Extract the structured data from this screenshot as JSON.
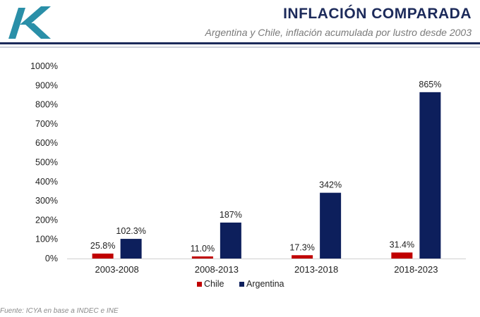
{
  "header": {
    "title": "INFLACIÓN COMPARADA",
    "subtitle": "Argentina y Chile, inflación acumulada por lustro desde 2003"
  },
  "footer": {
    "source": "Fuente: ICYA en base a INDEC e INE"
  },
  "colors": {
    "chile": "#c00000",
    "argentina": "#0d1f5c",
    "accent": "#1c2a5a",
    "logo": "#2a8fa8"
  },
  "chart_data": {
    "type": "bar",
    "title": "INFLACIÓN COMPARADA",
    "subtitle": "Argentina y Chile, inflación acumulada por lustro desde 2003",
    "xlabel": "",
    "ylabel": "",
    "categories": [
      "2003-2008",
      "2008-2013",
      "2013-2018",
      "2018-2023"
    ],
    "series": [
      {
        "name": "Chile",
        "values": [
          25.8,
          11.0,
          17.3,
          31.4
        ],
        "labels": [
          "25.8%",
          "11.0%",
          "17.3%",
          "31.4%"
        ]
      },
      {
        "name": "Argentina",
        "values": [
          102.3,
          187,
          342,
          865
        ],
        "labels": [
          "102.3%",
          "187%",
          "342%",
          "865%"
        ]
      }
    ],
    "ylim": [
      0,
      1000
    ],
    "yticks": [
      0,
      100,
      200,
      300,
      400,
      500,
      600,
      700,
      800,
      900,
      1000
    ],
    "ytick_labels": [
      "0%",
      "100%",
      "200%",
      "300%",
      "400%",
      "500%",
      "600%",
      "700%",
      "800%",
      "900%",
      "1000%"
    ],
    "grid": false,
    "legend": "bottom"
  }
}
